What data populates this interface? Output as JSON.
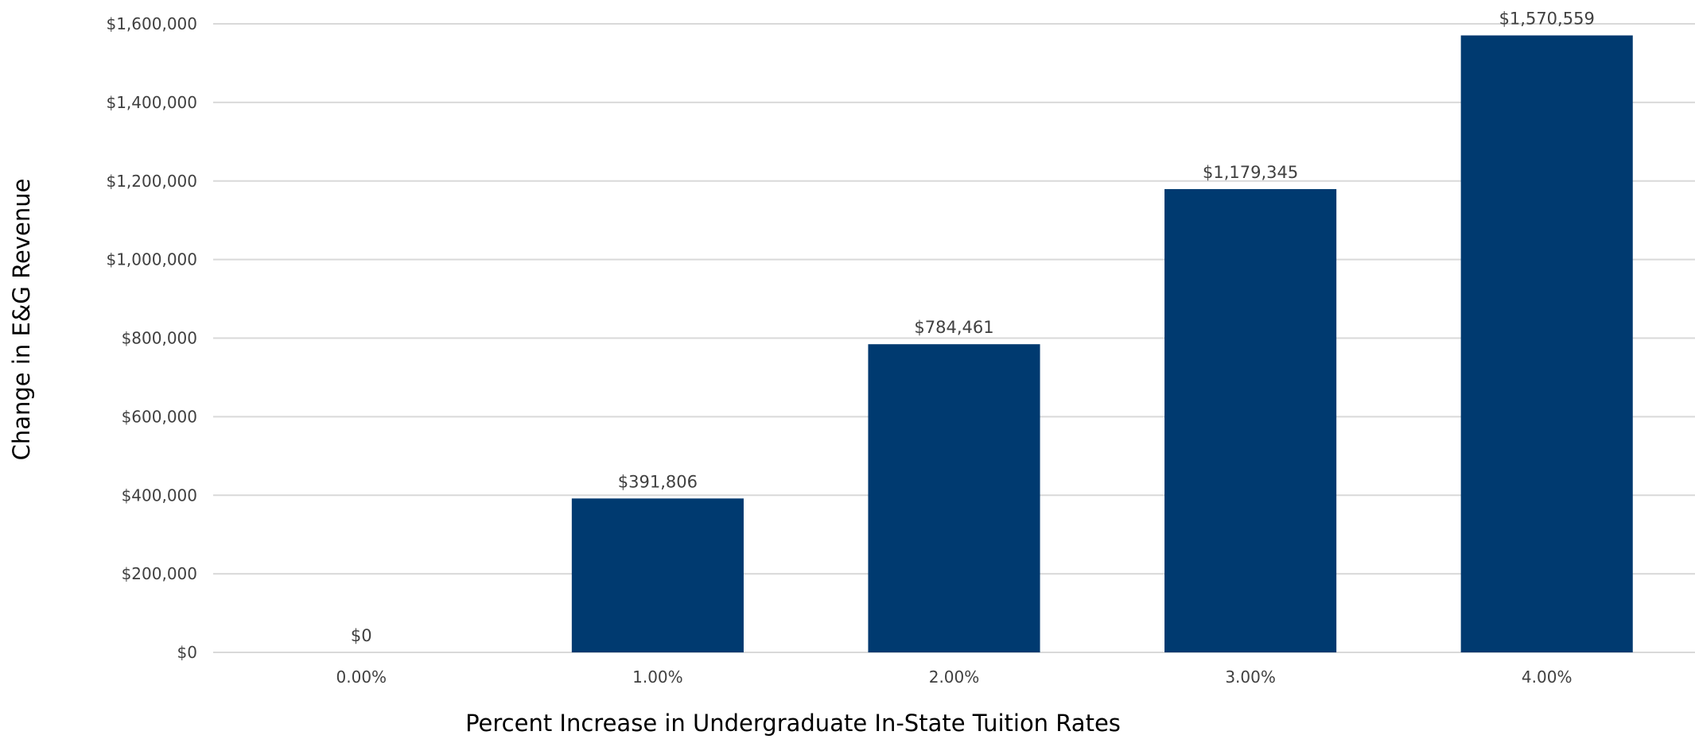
{
  "chart_data": {
    "type": "bar",
    "title": "",
    "categories": [
      "0.00%",
      "1.00%",
      "2.00%",
      "3.00%",
      "4.00%"
    ],
    "values": [
      0,
      391806,
      784461,
      1179345,
      1570559
    ],
    "data_labels": [
      "$0",
      "$391,806",
      "$784,461",
      "$1,179,345",
      "$1,570,559"
    ],
    "xlabel": "Percent Increase in Undergraduate In-State Tuition Rates",
    "ylabel": "Change in E&G Revenue",
    "ylim": [
      0,
      1600000
    ],
    "yticks": [
      0,
      200000,
      400000,
      600000,
      800000,
      1000000,
      1200000,
      1400000,
      1600000
    ],
    "ytick_labels": [
      "$0",
      "$200,000",
      "$400,000",
      "$600,000",
      "$800,000",
      "$1,000,000",
      "$1,200,000",
      "$1,400,000",
      "$1,600,000"
    ],
    "grid": true,
    "legend": "none",
    "bar_color": "#003a70",
    "gridline_color": "#d9d9d9"
  }
}
